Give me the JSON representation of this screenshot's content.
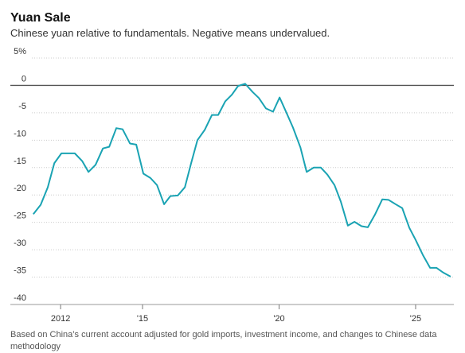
{
  "chart_data": {
    "type": "line",
    "title": "Yuan Sale",
    "subtitle": "Chinese yuan relative to fundamentals. Negative means undervalued.",
    "note": "Based on China’s current account adjusted for gold imports, investment income, and changes to Chinese data methodology",
    "x": [
      2011.0,
      2011.27,
      2011.53,
      2011.77,
      2012.03,
      2012.52,
      2012.79,
      2013.02,
      2013.28,
      2013.55,
      2013.78,
      2014.04,
      2014.27,
      2014.54,
      2014.77,
      2015.03,
      2015.29,
      2015.53,
      2015.79,
      2016.02,
      2016.29,
      2016.55,
      2016.78,
      2017.01,
      2017.28,
      2017.54,
      2017.77,
      2018.03,
      2018.27,
      2018.5,
      2018.76,
      2019.03,
      2019.26,
      2019.52,
      2019.78,
      2020.02,
      2020.28,
      2020.51,
      2020.78,
      2021.01,
      2021.27,
      2021.53,
      2021.77,
      2022.03,
      2022.26,
      2022.52,
      2022.76,
      2023.02,
      2023.25,
      2023.52,
      2023.78,
      2024.01,
      2024.27,
      2024.51,
      2024.77,
      2025.0,
      2025.27,
      2025.53,
      2025.76,
      2026.02,
      2026.28
    ],
    "series": [
      {
        "color": "#1aa3b3",
        "values": [
          -23.5,
          -21.8,
          -18.6,
          -14.2,
          -12.4,
          -12.4,
          -13.8,
          -15.8,
          -14.5,
          -11.5,
          -11.2,
          -7.8,
          -8.0,
          -10.6,
          -10.8,
          -16.1,
          -16.9,
          -18.2,
          -21.7,
          -20.2,
          -20.1,
          -18.6,
          -14.2,
          -10.0,
          -8.1,
          -5.4,
          -5.4,
          -2.9,
          -1.7,
          -0.1,
          0.3,
          -1.2,
          -2.3,
          -4.2,
          -4.8,
          -2.2,
          -5.1,
          -7.7,
          -11.3,
          -15.8,
          -15.0,
          -15.0,
          -16.3,
          -18.2,
          -21.2,
          -25.6,
          -24.9,
          -25.7,
          -25.9,
          -23.5,
          -20.8,
          -20.9,
          -21.7,
          -22.4,
          -26.0,
          -28.2,
          -31.0,
          -33.3,
          -33.3,
          -34.2,
          -34.9
        ]
      }
    ],
    "xlim": [
      2010.16,
      2026.4
    ],
    "xticks": [
      2012,
      {
        "value": 2015,
        "label": "'15"
      },
      {
        "value": 2020,
        "label": "'20"
      },
      {
        "value": 2025,
        "label": "'25"
      }
    ],
    "ylim": [
      -40,
      5
    ],
    "yticks": [
      {
        "value": 5,
        "label": "5%"
      },
      0,
      -5,
      -10,
      -15,
      -20,
      -25,
      -30,
      -35,
      -40
    ],
    "grid": true
  }
}
